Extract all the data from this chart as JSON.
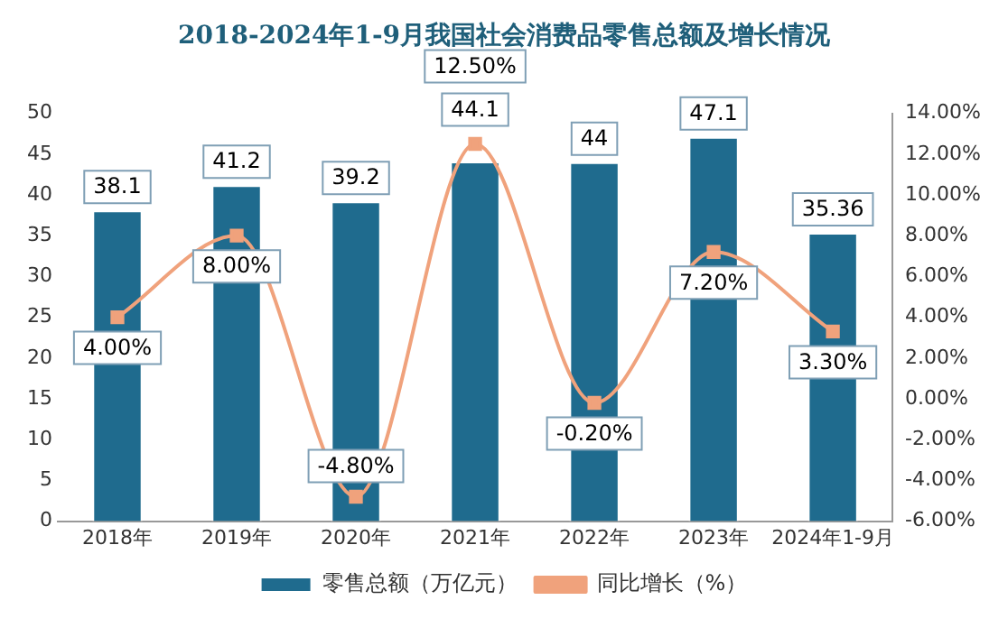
{
  "chart_data": {
    "type": "bar",
    "title": "2018-2024年1-9月我国社会消费品零售总额及增长情况",
    "categories": [
      "2018年",
      "2019年",
      "2020年",
      "2021年",
      "2022年",
      "2023年",
      "2024年1-9月"
    ],
    "series": [
      {
        "name": "零售总额（万亿元）",
        "color": "#1f6b8e",
        "values": [
          38.1,
          41.2,
          39.2,
          44.1,
          44,
          47.1,
          35.36
        ]
      },
      {
        "name": "同比增长（%）",
        "type": "line",
        "axis": "y2",
        "color": "#f0a27c",
        "marker": "square",
        "values": [
          4,
          8,
          -4.8,
          12.5,
          -0.2,
          7.2,
          3.3
        ],
        "value_labels": [
          "4.00%",
          "8.00%",
          "-4.80%",
          "12.50%",
          "-0.20%",
          "7.20%",
          "3.30%"
        ]
      }
    ],
    "data_labels": true,
    "ylim": [
      0,
      50
    ],
    "yticks": [
      0,
      5,
      10,
      15,
      20,
      25,
      30,
      35,
      40,
      45,
      50
    ],
    "y2lim": [
      -6,
      14
    ],
    "y2ticks": [
      {
        "value": -6,
        "label": "-6.00%"
      },
      {
        "value": -4,
        "label": "-4.00%"
      },
      {
        "value": -2,
        "label": "-2.00%"
      },
      {
        "value": 0,
        "label": "0.00%"
      },
      {
        "value": 2,
        "label": "2.00%"
      },
      {
        "value": 4,
        "label": "4.00%"
      },
      {
        "value": 6,
        "label": "6.00%"
      },
      {
        "value": 8,
        "label": "8.00%"
      },
      {
        "value": 10,
        "label": "10.00%"
      },
      {
        "value": 12,
        "label": "12.00%"
      },
      {
        "value": 14,
        "label": "14.00%"
      }
    ],
    "grid": false,
    "legend": "bottom"
  }
}
